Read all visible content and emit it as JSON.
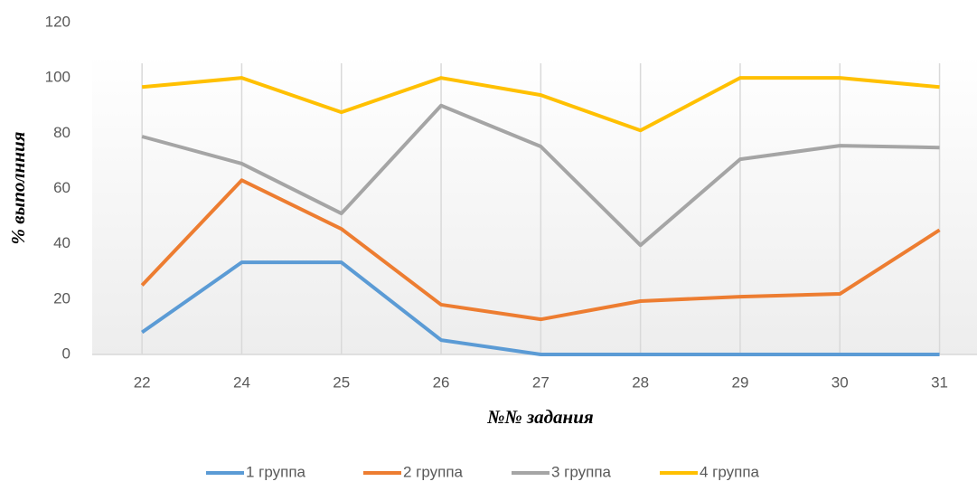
{
  "chart_data": {
    "type": "line",
    "categories": [
      "22",
      "24",
      "25",
      "26",
      "27",
      "28",
      "29",
      "30",
      "31"
    ],
    "series": [
      {
        "name": "1 группа",
        "color": "#5b9bd5",
        "values": [
          8,
          33.3,
          33.3,
          5.2,
          0,
          0,
          0,
          0,
          0
        ]
      },
      {
        "name": "2 группа",
        "color": "#ed7d31",
        "values": [
          25,
          63,
          45.4,
          18,
          12.7,
          19.3,
          20.9,
          21.9,
          45
        ]
      },
      {
        "name": "3 группа",
        "color": "#a5a5a5",
        "values": [
          78.8,
          69,
          51,
          90,
          75.2,
          39.5,
          70.6,
          75.5,
          74.8
        ]
      },
      {
        "name": "4 группа",
        "color": "#ffc000",
        "values": [
          96.7,
          100,
          87.6,
          100,
          93.8,
          81,
          100,
          100,
          96.7
        ]
      }
    ],
    "ylabel": "% выполнния",
    "xlabel": "№№ задания",
    "ylim": [
      0,
      120
    ],
    "yticks": [
      0,
      20,
      40,
      60,
      80,
      100,
      120
    ],
    "legend": "bottom"
  }
}
